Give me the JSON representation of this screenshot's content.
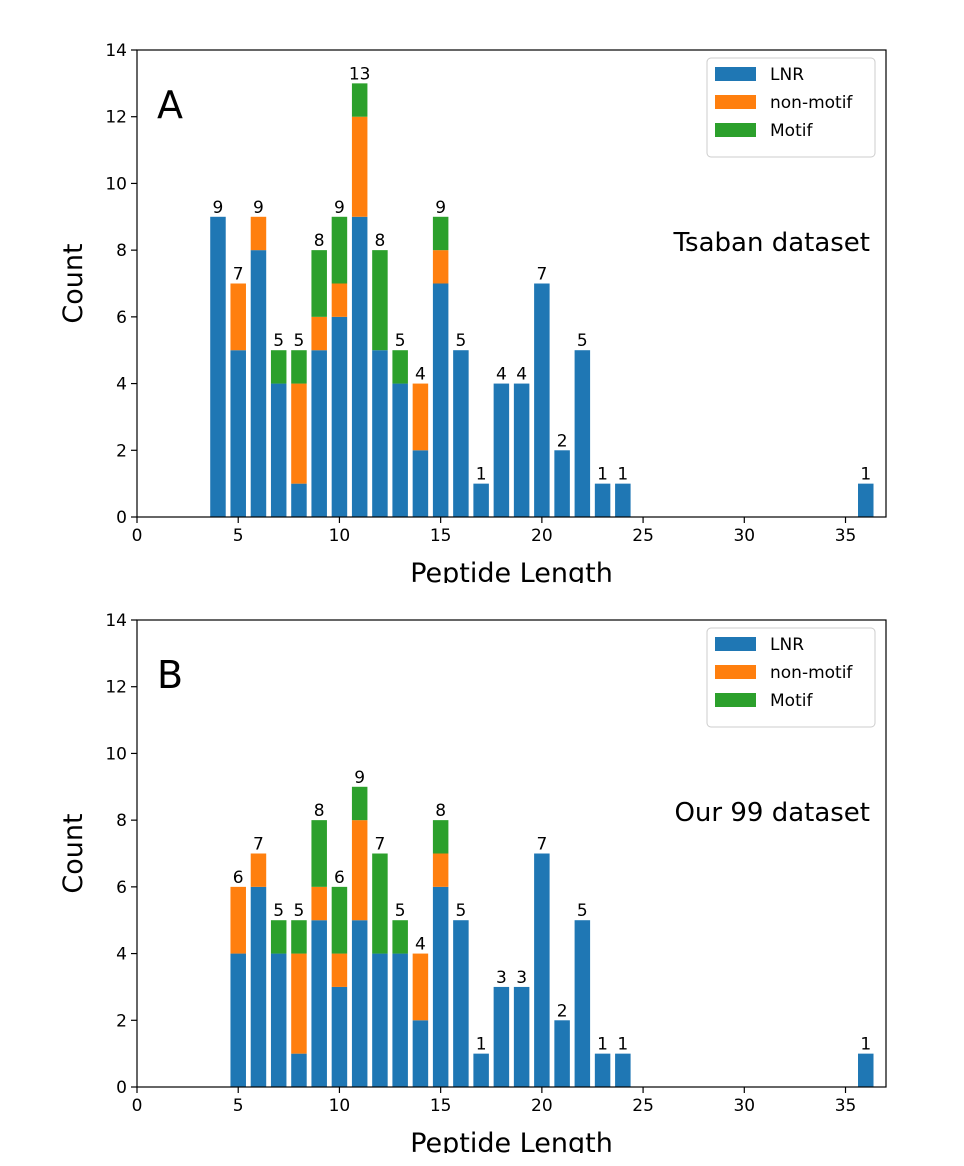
{
  "colors": {
    "LNR": "#1f77b4",
    "non-motif": "#ff7f0e",
    "Motif": "#2ca02c"
  },
  "chart_data": [
    {
      "type": "bar",
      "stacked": true,
      "panel_letter": "A",
      "dataset_label": "Tsaban dataset",
      "xlabel": "Peptide Length",
      "ylabel": "Count",
      "xlim": [
        0,
        37
      ],
      "ylim": [
        0,
        14
      ],
      "xticks": [
        0,
        5,
        10,
        15,
        20,
        25,
        30,
        35
      ],
      "yticks": [
        0,
        2,
        4,
        6,
        8,
        10,
        12,
        14
      ],
      "legend": {
        "position": "top-right",
        "entries": [
          "LNR",
          "non-motif",
          "Motif"
        ]
      },
      "grid": false,
      "x": [
        4,
        5,
        6,
        7,
        8,
        9,
        10,
        11,
        12,
        13,
        14,
        15,
        16,
        17,
        18,
        19,
        20,
        21,
        22,
        23,
        24,
        36
      ],
      "series": [
        {
          "name": "LNR",
          "values": [
            9,
            5,
            8,
            4,
            1,
            5,
            6,
            9,
            5,
            4,
            2,
            7,
            5,
            1,
            4,
            4,
            7,
            2,
            5,
            1,
            1,
            1
          ]
        },
        {
          "name": "non-motif",
          "values": [
            0,
            2,
            1,
            0,
            3,
            1,
            1,
            3,
            0,
            0,
            2,
            1,
            0,
            0,
            0,
            0,
            0,
            0,
            0,
            0,
            0,
            0
          ]
        },
        {
          "name": "Motif",
          "values": [
            0,
            0,
            0,
            1,
            1,
            2,
            2,
            1,
            3,
            1,
            0,
            1,
            0,
            0,
            0,
            0,
            0,
            0,
            0,
            0,
            0,
            0
          ]
        }
      ],
      "totals": [
        9,
        7,
        9,
        5,
        5,
        8,
        9,
        13,
        8,
        5,
        4,
        9,
        5,
        1,
        4,
        4,
        7,
        2,
        5,
        1,
        1,
        1
      ]
    },
    {
      "type": "bar",
      "stacked": true,
      "panel_letter": "B",
      "dataset_label": "Our 99 dataset",
      "xlabel": "Peptide Length",
      "ylabel": "Count",
      "xlim": [
        0,
        37
      ],
      "ylim": [
        0,
        14
      ],
      "xticks": [
        0,
        5,
        10,
        15,
        20,
        25,
        30,
        35
      ],
      "yticks": [
        0,
        2,
        4,
        6,
        8,
        10,
        12,
        14
      ],
      "legend": {
        "position": "top-right",
        "entries": [
          "LNR",
          "non-motif",
          "Motif"
        ]
      },
      "grid": false,
      "x": [
        5,
        6,
        7,
        8,
        9,
        10,
        11,
        12,
        13,
        14,
        15,
        16,
        17,
        18,
        19,
        20,
        21,
        22,
        23,
        24,
        36
      ],
      "series": [
        {
          "name": "LNR",
          "values": [
            4,
            6,
            4,
            1,
            5,
            3,
            5,
            4,
            4,
            2,
            6,
            5,
            1,
            3,
            3,
            7,
            2,
            5,
            1,
            1,
            1
          ]
        },
        {
          "name": "non-motif",
          "values": [
            2,
            1,
            0,
            3,
            1,
            1,
            3,
            0,
            0,
            2,
            1,
            0,
            0,
            0,
            0,
            0,
            0,
            0,
            0,
            0,
            0
          ]
        },
        {
          "name": "Motif",
          "values": [
            0,
            0,
            1,
            1,
            2,
            2,
            1,
            3,
            1,
            0,
            1,
            0,
            0,
            0,
            0,
            0,
            0,
            0,
            0,
            0,
            0
          ]
        }
      ],
      "totals": [
        6,
        7,
        5,
        5,
        8,
        6,
        9,
        7,
        5,
        4,
        8,
        5,
        1,
        3,
        3,
        7,
        2,
        5,
        1,
        1,
        1
      ]
    }
  ]
}
